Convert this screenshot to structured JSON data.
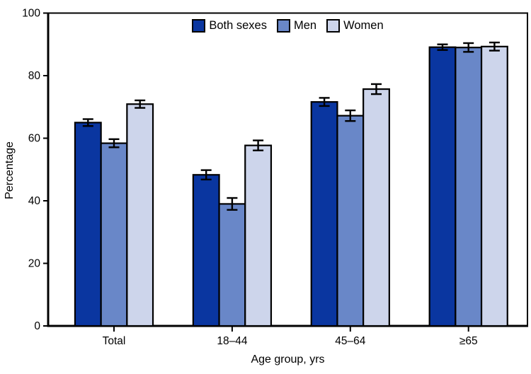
{
  "chart_data": {
    "type": "bar",
    "title": "",
    "xlabel": "Age group, yrs",
    "ylabel": "Percentage",
    "categories": [
      "Total",
      "18–44",
      "45–64",
      "≥65"
    ],
    "series": [
      {
        "name": "Both sexes",
        "color": "#0A36A0",
        "values": [
          65.0,
          48.3,
          71.6,
          89.1
        ],
        "errors": [
          1.1,
          1.5,
          1.3,
          0.9
        ]
      },
      {
        "name": "Men",
        "color": "#6987C8",
        "values": [
          58.4,
          39.0,
          67.2,
          89.0
        ],
        "errors": [
          1.3,
          1.9,
          1.7,
          1.4
        ]
      },
      {
        "name": "Women",
        "color": "#CDD5EB",
        "values": [
          70.9,
          57.7,
          75.7,
          89.3
        ],
        "errors": [
          1.2,
          1.6,
          1.6,
          1.3
        ]
      }
    ],
    "ylim": [
      0,
      100
    ],
    "yticks": [
      0,
      20,
      40,
      60,
      80,
      100
    ],
    "grid": false,
    "legend_position": "top-center",
    "error_bars": true,
    "frame": true,
    "axis_color": "#000000",
    "bar_border_color": "#000000"
  }
}
